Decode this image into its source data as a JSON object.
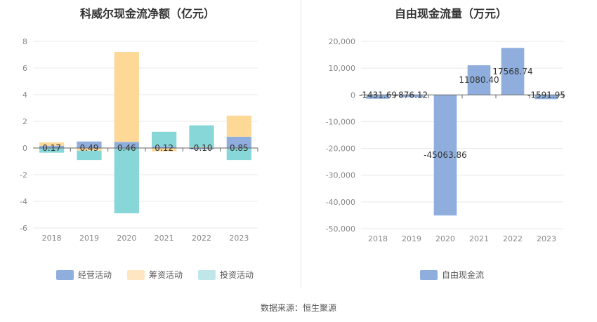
{
  "source_text": "数据来源：恒生聚源",
  "chart_data": [
    {
      "type": "bar",
      "stacked": true,
      "title": "科威尔现金流净额（亿元）",
      "categories": [
        "2018",
        "2019",
        "2020",
        "2021",
        "2022",
        "2023"
      ],
      "ylim": [
        -6,
        8
      ],
      "yticks": [
        -6,
        -4,
        -2,
        0,
        2,
        4,
        6,
        8
      ],
      "series": [
        {
          "name": "经营活动",
          "color": "#8faedd",
          "values": [
            0.17,
            0.49,
            0.46,
            0.12,
            -0.1,
            0.85
          ]
        },
        {
          "name": "筹资活动",
          "color": "#fdd897",
          "values": [
            0.25,
            -0.2,
            6.75,
            -0.25,
            0.05,
            1.58
          ]
        },
        {
          "name": "投资活动",
          "color": "#87d6d8",
          "values": [
            -0.35,
            -0.7,
            -4.9,
            1.1,
            1.65,
            -0.9
          ]
        }
      ],
      "labels": [
        "0.17",
        "0.49",
        "0.46",
        "0.12",
        "-0.10",
        "0.85"
      ],
      "legend_swatch_colors": [
        "#8faedd",
        "#fde6c1",
        "#bfe7ea"
      ],
      "grid": true,
      "legend_position": "bottom"
    },
    {
      "type": "bar",
      "title": "自由现金流量（万元）",
      "categories": [
        "2018",
        "2019",
        "2020",
        "2021",
        "2022",
        "2023"
      ],
      "ylim": [
        -50000,
        20000
      ],
      "yticks": [
        -50000,
        -40000,
        -30000,
        -20000,
        -10000,
        0,
        10000,
        20000
      ],
      "ytick_labels": [
        "-50,000",
        "-40,000",
        "-30,000",
        "-20,000",
        "-10,000",
        "0",
        "10,000",
        "20,000"
      ],
      "series": [
        {
          "name": "自由现金流",
          "color": "#8faedd",
          "values": [
            -1431.69,
            -876.12,
            -45063.86,
            11080.4,
            17568.74,
            -1591.95
          ]
        }
      ],
      "labels": [
        "-1431.69",
        "-876.12",
        "-45063.86",
        "11080.40",
        "17568.74",
        "-1591.95"
      ],
      "grid": true,
      "legend_position": "bottom"
    }
  ]
}
